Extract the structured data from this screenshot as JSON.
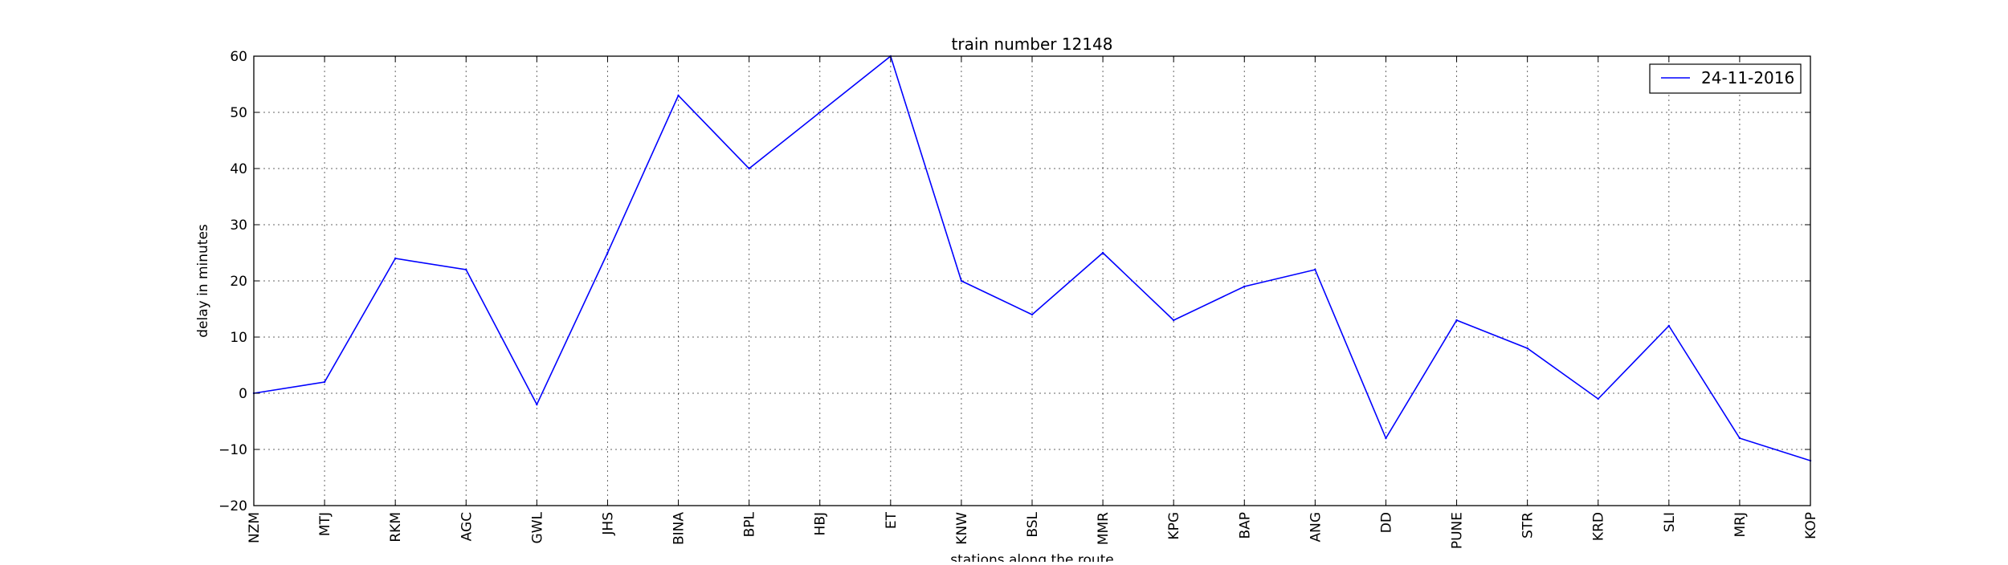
{
  "chart_data": {
    "type": "line",
    "title": "train number 12148",
    "xlabel": "stations along the route",
    "ylabel": "delay in minutes",
    "categories": [
      "NZM",
      "MTJ",
      "RKM",
      "AGC",
      "GWL",
      "JHS",
      "BINA",
      "BPL",
      "HBJ",
      "ET",
      "KNW",
      "BSL",
      "MMR",
      "KPG",
      "BAP",
      "ANG",
      "DD",
      "PUNE",
      "STR",
      "KRD",
      "SLI",
      "MRJ",
      "KOP"
    ],
    "series": [
      {
        "name": "24-11-2016",
        "color": "#0000ff",
        "values": [
          0,
          2,
          24,
          22,
          -2,
          25,
          53,
          40,
          50,
          60,
          20,
          14,
          25,
          13,
          19,
          22,
          -8,
          13,
          8,
          -1,
          12,
          -8,
          -12
        ]
      }
    ],
    "ylim": [
      -20,
      60
    ],
    "yticks": [
      -20,
      -10,
      0,
      10,
      20,
      30,
      40,
      50,
      60
    ],
    "grid": true,
    "legend_position": "top-right"
  }
}
